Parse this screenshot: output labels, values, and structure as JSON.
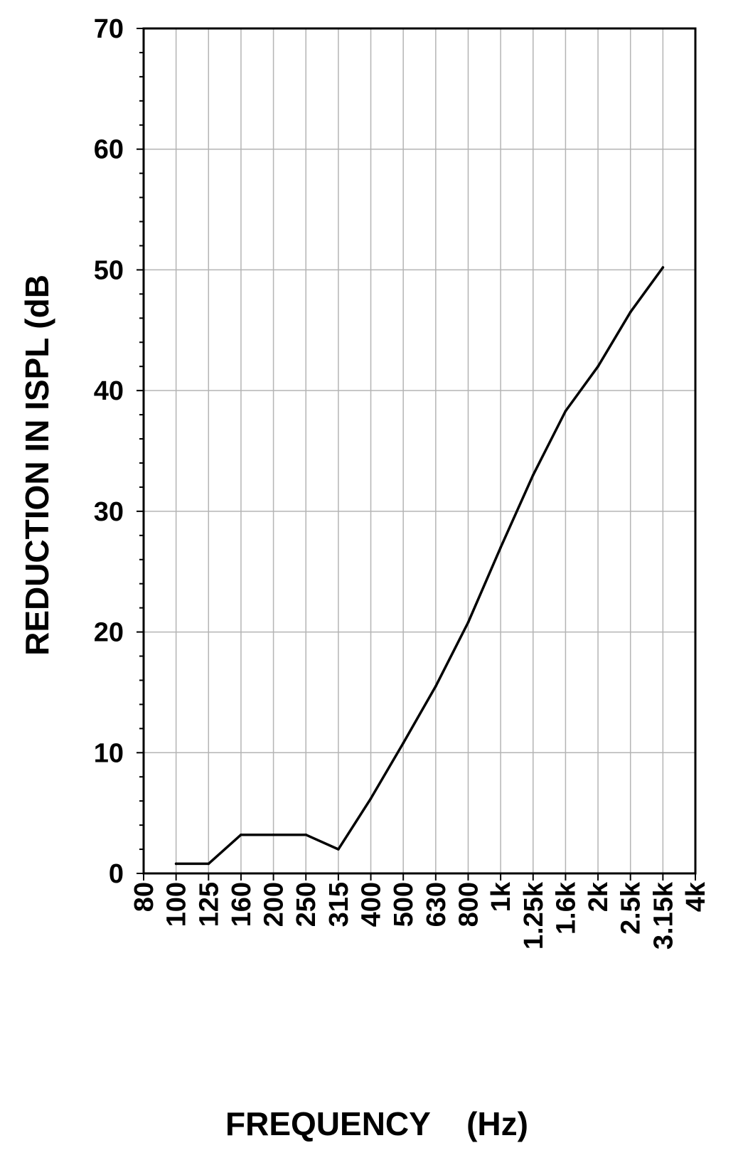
{
  "chart_data": {
    "type": "line",
    "title": "",
    "xlabel": "FREQUENCY    (Hz)",
    "ylabel": "REDUCTION IN ISPL    (dB",
    "ylim": [
      0,
      70
    ],
    "y_ticks": [
      "0",
      "10",
      "20",
      "30",
      "40",
      "50",
      "60",
      "70"
    ],
    "x_scale": "categorical (one-third-octave bands)",
    "categories": [
      "80",
      "100",
      "125",
      "160",
      "200",
      "250",
      "315",
      "400",
      "500",
      "630",
      "800",
      "1k",
      "1.25k",
      "1.6k",
      "2k",
      "2.5k",
      "3.15k",
      "4k"
    ],
    "grid": true,
    "series": [
      {
        "x": [
          "100",
          "125",
          "160",
          "200",
          "250",
          "315",
          "400",
          "500",
          "630",
          "800",
          "1k",
          "1.25k",
          "1.6k",
          "2k",
          "2.5k",
          "3.15k"
        ],
        "values": [
          0.8,
          0.8,
          3.2,
          3.2,
          3.2,
          2.0,
          6.2,
          10.8,
          15.5,
          20.8,
          27.0,
          33.0,
          38.3,
          42.0,
          46.5,
          50.2
        ]
      }
    ],
    "colors": {
      "line": "#000000",
      "grid": "#b4b4b4",
      "axis": "#000000"
    }
  }
}
